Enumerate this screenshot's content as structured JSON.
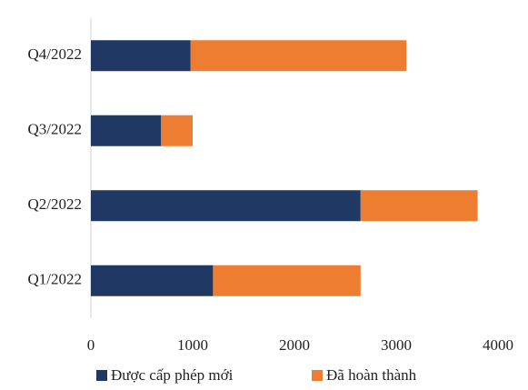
{
  "chart_data": {
    "type": "stacked-bar-horizontal",
    "categories": [
      "Q4/2022",
      "Q3/2022",
      "Q2/2022",
      "Q1/2022"
    ],
    "series": [
      {
        "name": "Được cấp phép mới",
        "color": "#203864",
        "values": [
          980,
          690,
          2650,
          1200
        ]
      },
      {
        "name": "Đã hoàn thành",
        "color": "#ed7d31",
        "values": [
          2120,
          310,
          1150,
          1450
        ]
      }
    ],
    "xlim": [
      0,
      4000
    ],
    "xticks": [
      0,
      1000,
      2000,
      3000,
      4000
    ],
    "grid": false,
    "legend": "bottom"
  }
}
